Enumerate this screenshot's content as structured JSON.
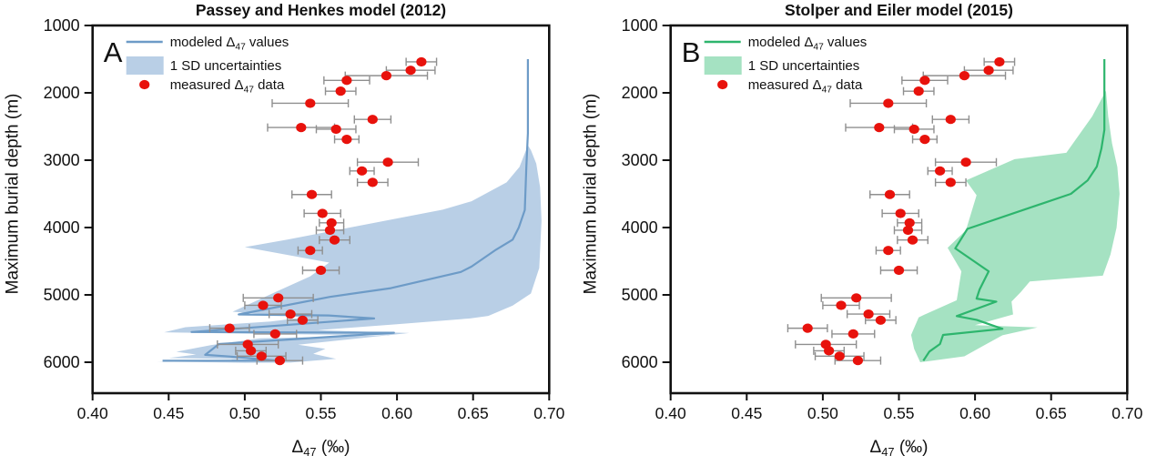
{
  "page": {
    "background": "#ffffff"
  },
  "chart_data": [
    {
      "type": "line",
      "panel_label": "A",
      "title": "Passey and Henkes model (2012)",
      "xlabel": "Δ47 (‰)",
      "ylabel": "Maximum burial depth (m)",
      "xlim": [
        0.4,
        0.7
      ],
      "ylim": [
        1000,
        6000
      ],
      "y_inverted": true,
      "grid": false,
      "xticks": [
        0.4,
        0.45,
        0.5,
        0.55,
        0.6,
        0.65,
        0.7
      ],
      "xtick_labels": [
        "0.40",
        "0.45",
        "0.50",
        "0.55",
        "0.60",
        "0.65",
        "0.70"
      ],
      "yticks": [
        1000,
        2000,
        3000,
        4000,
        5000,
        6000
      ],
      "ytick_labels": [
        "1000",
        "2000",
        "3000",
        "4000",
        "5000",
        "6000"
      ],
      "legend": {
        "position": "top-left",
        "entries": [
          {
            "type": "line",
            "label": "modeled Δ47 values"
          },
          {
            "type": "band",
            "label": "1 SD uncertainties"
          },
          {
            "type": "point",
            "label": "measured Δ47 data"
          }
        ]
      },
      "colors": {
        "line": "#6d9bc7",
        "band": "#b9cfe6",
        "point": "#e8120c",
        "error_bar": "#8f8f8f",
        "axis": "#111111"
      },
      "series": {
        "modeled_line": [
          [
            0.686,
            1500
          ],
          [
            0.686,
            2600
          ],
          [
            0.685,
            3100
          ],
          [
            0.684,
            3740
          ],
          [
            0.68,
            4000
          ],
          [
            0.676,
            4180
          ],
          [
            0.665,
            4330
          ],
          [
            0.649,
            4580
          ],
          [
            0.642,
            4660
          ],
          [
            0.596,
            4900
          ],
          [
            0.556,
            5030
          ],
          [
            0.496,
            5290
          ],
          [
            0.555,
            5305
          ],
          [
            0.585,
            5350
          ],
          [
            0.465,
            5552
          ],
          [
            0.598,
            5562
          ],
          [
            0.483,
            5730
          ],
          [
            0.474,
            5890
          ],
          [
            0.49,
            5915
          ],
          [
            0.52,
            5975
          ],
          [
            0.446,
            5978
          ]
        ],
        "uncertainty_band": [
          [
            0.686,
            2780
          ],
          [
            0.6805,
            3100
          ],
          [
            0.672,
            3330
          ],
          [
            0.649,
            3610
          ],
          [
            0.63,
            3735
          ],
          [
            0.569,
            4000
          ],
          [
            0.528,
            4180
          ],
          [
            0.5,
            4290
          ],
          [
            0.5555,
            4520
          ],
          [
            0.543,
            4725
          ],
          [
            0.521,
            4950
          ],
          [
            0.492,
            5250
          ],
          [
            0.539,
            5335
          ],
          [
            0.517,
            5395
          ],
          [
            0.461,
            5480
          ],
          [
            0.447,
            5556
          ],
          [
            0.51,
            5580
          ],
          [
            0.596,
            5600
          ],
          [
            0.51,
            5645
          ],
          [
            0.478,
            5745
          ],
          [
            0.455,
            5845
          ],
          [
            0.468,
            5885
          ],
          [
            0.45,
            5938
          ],
          [
            0.516,
            5960
          ],
          [
            0.442,
            5990
          ],
          [
            0.5,
            6008
          ],
          [
            0.53,
            6005
          ],
          [
            0.56,
            5950
          ],
          [
            0.545,
            5875
          ],
          [
            0.553,
            5800
          ],
          [
            0.535,
            5740
          ],
          [
            0.608,
            5566
          ],
          [
            0.548,
            5525
          ],
          [
            0.6,
            5435
          ],
          [
            0.648,
            5350
          ],
          [
            0.66,
            5312
          ],
          [
            0.676,
            5160
          ],
          [
            0.688,
            4980
          ],
          [
            0.6935,
            4600
          ],
          [
            0.695,
            3900
          ],
          [
            0.694,
            3400
          ],
          [
            0.6915,
            3050
          ],
          [
            0.688,
            2850
          ]
        ],
        "measured": [
          {
            "delta": 0.616,
            "depth": 1540,
            "err": 0.01
          },
          {
            "delta": 0.609,
            "depth": 1665,
            "err": 0.016
          },
          {
            "delta": 0.593,
            "depth": 1745,
            "err": 0.027
          },
          {
            "delta": 0.567,
            "depth": 1815,
            "err": 0.015
          },
          {
            "delta": 0.563,
            "depth": 1975,
            "err": 0.01
          },
          {
            "delta": 0.543,
            "depth": 2155,
            "err": 0.025
          },
          {
            "delta": 0.584,
            "depth": 2395,
            "err": 0.012
          },
          {
            "delta": 0.537,
            "depth": 2515,
            "err": 0.022
          },
          {
            "delta": 0.56,
            "depth": 2540,
            "err": 0.013
          },
          {
            "delta": 0.567,
            "depth": 2690,
            "err": 0.008
          },
          {
            "delta": 0.594,
            "depth": 3030,
            "err": 0.02
          },
          {
            "delta": 0.577,
            "depth": 3160,
            "err": 0.008
          },
          {
            "delta": 0.584,
            "depth": 3330,
            "err": 0.01
          },
          {
            "delta": 0.544,
            "depth": 3510,
            "err": 0.013
          },
          {
            "delta": 0.551,
            "depth": 3790,
            "err": 0.012
          },
          {
            "delta": 0.557,
            "depth": 3930,
            "err": 0.008
          },
          {
            "delta": 0.556,
            "depth": 4040,
            "err": 0.009
          },
          {
            "delta": 0.559,
            "depth": 4185,
            "err": 0.01
          },
          {
            "delta": 0.543,
            "depth": 4340,
            "err": 0.008
          },
          {
            "delta": 0.55,
            "depth": 4635,
            "err": 0.012
          },
          {
            "delta": 0.522,
            "depth": 5045,
            "err": 0.023
          },
          {
            "delta": 0.512,
            "depth": 5155,
            "err": 0.012
          },
          {
            "delta": 0.53,
            "depth": 5285,
            "err": 0.014
          },
          {
            "delta": 0.538,
            "depth": 5375,
            "err": 0.01
          },
          {
            "delta": 0.49,
            "depth": 5495,
            "err": 0.013
          },
          {
            "delta": 0.52,
            "depth": 5580,
            "err": 0.014
          },
          {
            "delta": 0.502,
            "depth": 5735,
            "err": 0.02
          },
          {
            "delta": 0.504,
            "depth": 5830,
            "err": 0.01
          },
          {
            "delta": 0.511,
            "depth": 5910,
            "err": 0.016
          },
          {
            "delta": 0.523,
            "depth": 5975,
            "err": 0.015
          }
        ]
      }
    },
    {
      "type": "line",
      "panel_label": "B",
      "title": "Stolper and Eiler model (2015)",
      "xlabel": "Δ47 (‰)",
      "ylabel": "Maximum burial depth (m)",
      "xlim": [
        0.4,
        0.7
      ],
      "ylim": [
        1000,
        6000
      ],
      "y_inverted": true,
      "grid": false,
      "xticks": [
        0.4,
        0.45,
        0.5,
        0.55,
        0.6,
        0.65,
        0.7
      ],
      "xtick_labels": [
        "0.40",
        "0.45",
        "0.50",
        "0.55",
        "0.60",
        "0.65",
        "0.70"
      ],
      "yticks": [
        1000,
        2000,
        3000,
        4000,
        5000,
        6000
      ],
      "ytick_labels": [
        "1000",
        "2000",
        "3000",
        "4000",
        "5000",
        "6000"
      ],
      "legend": {
        "position": "top-left",
        "entries": [
          {
            "type": "line",
            "label": "modeled Δ47 values"
          },
          {
            "type": "band",
            "label": "1 SD uncertainties"
          },
          {
            "type": "point",
            "label": "measured Δ47 data"
          }
        ]
      },
      "colors": {
        "line": "#2db56d",
        "band": "#a5e2c2",
        "point": "#e8120c",
        "error_bar": "#8f8f8f",
        "axis": "#111111"
      },
      "series": {
        "modeled_line": [
          [
            0.685,
            1500
          ],
          [
            0.685,
            2550
          ],
          [
            0.683,
            2830
          ],
          [
            0.68,
            3095
          ],
          [
            0.674,
            3300
          ],
          [
            0.663,
            3500
          ],
          [
            0.595,
            4020
          ],
          [
            0.587,
            4310
          ],
          [
            0.609,
            4650
          ],
          [
            0.603,
            4920
          ],
          [
            0.601,
            5055
          ],
          [
            0.614,
            5100
          ],
          [
            0.588,
            5315
          ],
          [
            0.601,
            5370
          ],
          [
            0.618,
            5504
          ],
          [
            0.579,
            5595
          ],
          [
            0.577,
            5730
          ],
          [
            0.57,
            5842
          ],
          [
            0.566,
            5977
          ]
        ],
        "uncertainty_band": [
          [
            0.686,
            1970
          ],
          [
            0.677,
            2350
          ],
          [
            0.66,
            2890
          ],
          [
            0.626,
            2985
          ],
          [
            0.594,
            3300
          ],
          [
            0.601,
            3520
          ],
          [
            0.594,
            4040
          ],
          [
            0.582,
            4300
          ],
          [
            0.591,
            4650
          ],
          [
            0.588,
            5080
          ],
          [
            0.567,
            5290
          ],
          [
            0.563,
            5335
          ],
          [
            0.558,
            5595
          ],
          [
            0.56,
            5800
          ],
          [
            0.564,
            6000
          ],
          [
            0.593,
            5912
          ],
          [
            0.604,
            5775
          ],
          [
            0.618,
            5600
          ],
          [
            0.641,
            5483
          ],
          [
            0.6,
            5450
          ],
          [
            0.625,
            5290
          ],
          [
            0.624,
            5100
          ],
          [
            0.63,
            4960
          ],
          [
            0.636,
            4800
          ],
          [
            0.684,
            4715
          ],
          [
            0.689,
            4400
          ],
          [
            0.693,
            4000
          ],
          [
            0.695,
            3500
          ],
          [
            0.6935,
            3100
          ],
          [
            0.69,
            2750
          ],
          [
            0.6875,
            2350
          ]
        ],
        "measured": [
          {
            "delta": 0.616,
            "depth": 1540,
            "err": 0.01
          },
          {
            "delta": 0.609,
            "depth": 1665,
            "err": 0.016
          },
          {
            "delta": 0.593,
            "depth": 1745,
            "err": 0.027
          },
          {
            "delta": 0.567,
            "depth": 1815,
            "err": 0.015
          },
          {
            "delta": 0.563,
            "depth": 1975,
            "err": 0.01
          },
          {
            "delta": 0.543,
            "depth": 2155,
            "err": 0.025
          },
          {
            "delta": 0.584,
            "depth": 2395,
            "err": 0.012
          },
          {
            "delta": 0.537,
            "depth": 2515,
            "err": 0.022
          },
          {
            "delta": 0.56,
            "depth": 2540,
            "err": 0.013
          },
          {
            "delta": 0.567,
            "depth": 2690,
            "err": 0.008
          },
          {
            "delta": 0.594,
            "depth": 3030,
            "err": 0.02
          },
          {
            "delta": 0.577,
            "depth": 3160,
            "err": 0.008
          },
          {
            "delta": 0.584,
            "depth": 3330,
            "err": 0.01
          },
          {
            "delta": 0.544,
            "depth": 3510,
            "err": 0.013
          },
          {
            "delta": 0.551,
            "depth": 3790,
            "err": 0.012
          },
          {
            "delta": 0.557,
            "depth": 3930,
            "err": 0.008
          },
          {
            "delta": 0.556,
            "depth": 4040,
            "err": 0.009
          },
          {
            "delta": 0.559,
            "depth": 4185,
            "err": 0.01
          },
          {
            "delta": 0.543,
            "depth": 4340,
            "err": 0.008
          },
          {
            "delta": 0.55,
            "depth": 4635,
            "err": 0.012
          },
          {
            "delta": 0.522,
            "depth": 5045,
            "err": 0.023
          },
          {
            "delta": 0.512,
            "depth": 5155,
            "err": 0.012
          },
          {
            "delta": 0.53,
            "depth": 5285,
            "err": 0.014
          },
          {
            "delta": 0.538,
            "depth": 5375,
            "err": 0.01
          },
          {
            "delta": 0.49,
            "depth": 5495,
            "err": 0.013
          },
          {
            "delta": 0.52,
            "depth": 5580,
            "err": 0.014
          },
          {
            "delta": 0.502,
            "depth": 5735,
            "err": 0.02
          },
          {
            "delta": 0.504,
            "depth": 5830,
            "err": 0.01
          },
          {
            "delta": 0.511,
            "depth": 5910,
            "err": 0.016
          },
          {
            "delta": 0.523,
            "depth": 5975,
            "err": 0.015
          }
        ]
      }
    }
  ]
}
